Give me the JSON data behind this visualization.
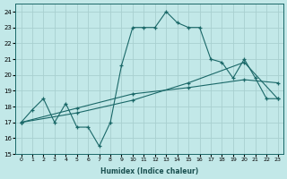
{
  "xlabel": "Humidex (Indice chaleur)",
  "bg_color": "#c2e8e8",
  "grid_color": "#a8d0d0",
  "line_color": "#1a6868",
  "xlim": [
    -0.5,
    23.5
  ],
  "ylim": [
    15,
    24.5
  ],
  "yticks": [
    15,
    16,
    17,
    18,
    19,
    20,
    21,
    22,
    23,
    24
  ],
  "xticks": [
    0,
    1,
    2,
    3,
    4,
    5,
    6,
    7,
    8,
    9,
    10,
    11,
    12,
    13,
    14,
    15,
    16,
    17,
    18,
    19,
    20,
    21,
    22,
    23
  ],
  "series1_x": [
    0,
    1,
    2,
    3,
    4,
    5,
    6,
    7,
    8,
    9,
    10,
    11,
    12,
    13,
    14,
    15,
    16,
    17,
    18,
    19,
    20,
    21,
    22,
    23
  ],
  "series1_y": [
    17.0,
    17.8,
    18.5,
    17.0,
    18.2,
    16.7,
    16.7,
    15.5,
    17.0,
    20.6,
    23.0,
    23.0,
    23.0,
    24.0,
    23.3,
    23.0,
    23.0,
    21.0,
    20.8,
    19.8,
    21.0,
    19.8,
    18.5,
    18.5
  ],
  "series2_x": [
    0,
    23
  ],
  "series2_y": [
    17.0,
    19.5
  ],
  "series3_x": [
    0,
    20,
    23
  ],
  "series3_y": [
    17.0,
    20.8,
    18.5
  ],
  "series2_markers_x": [
    0,
    5,
    10,
    15,
    20,
    23
  ],
  "series2_markers_y": [
    17.0,
    17.9,
    18.8,
    19.2,
    19.7,
    19.5
  ],
  "series3_markers_x": [
    0,
    5,
    10,
    15,
    20,
    23
  ],
  "series3_markers_y": [
    17.0,
    17.6,
    18.4,
    19.5,
    20.8,
    18.5
  ]
}
